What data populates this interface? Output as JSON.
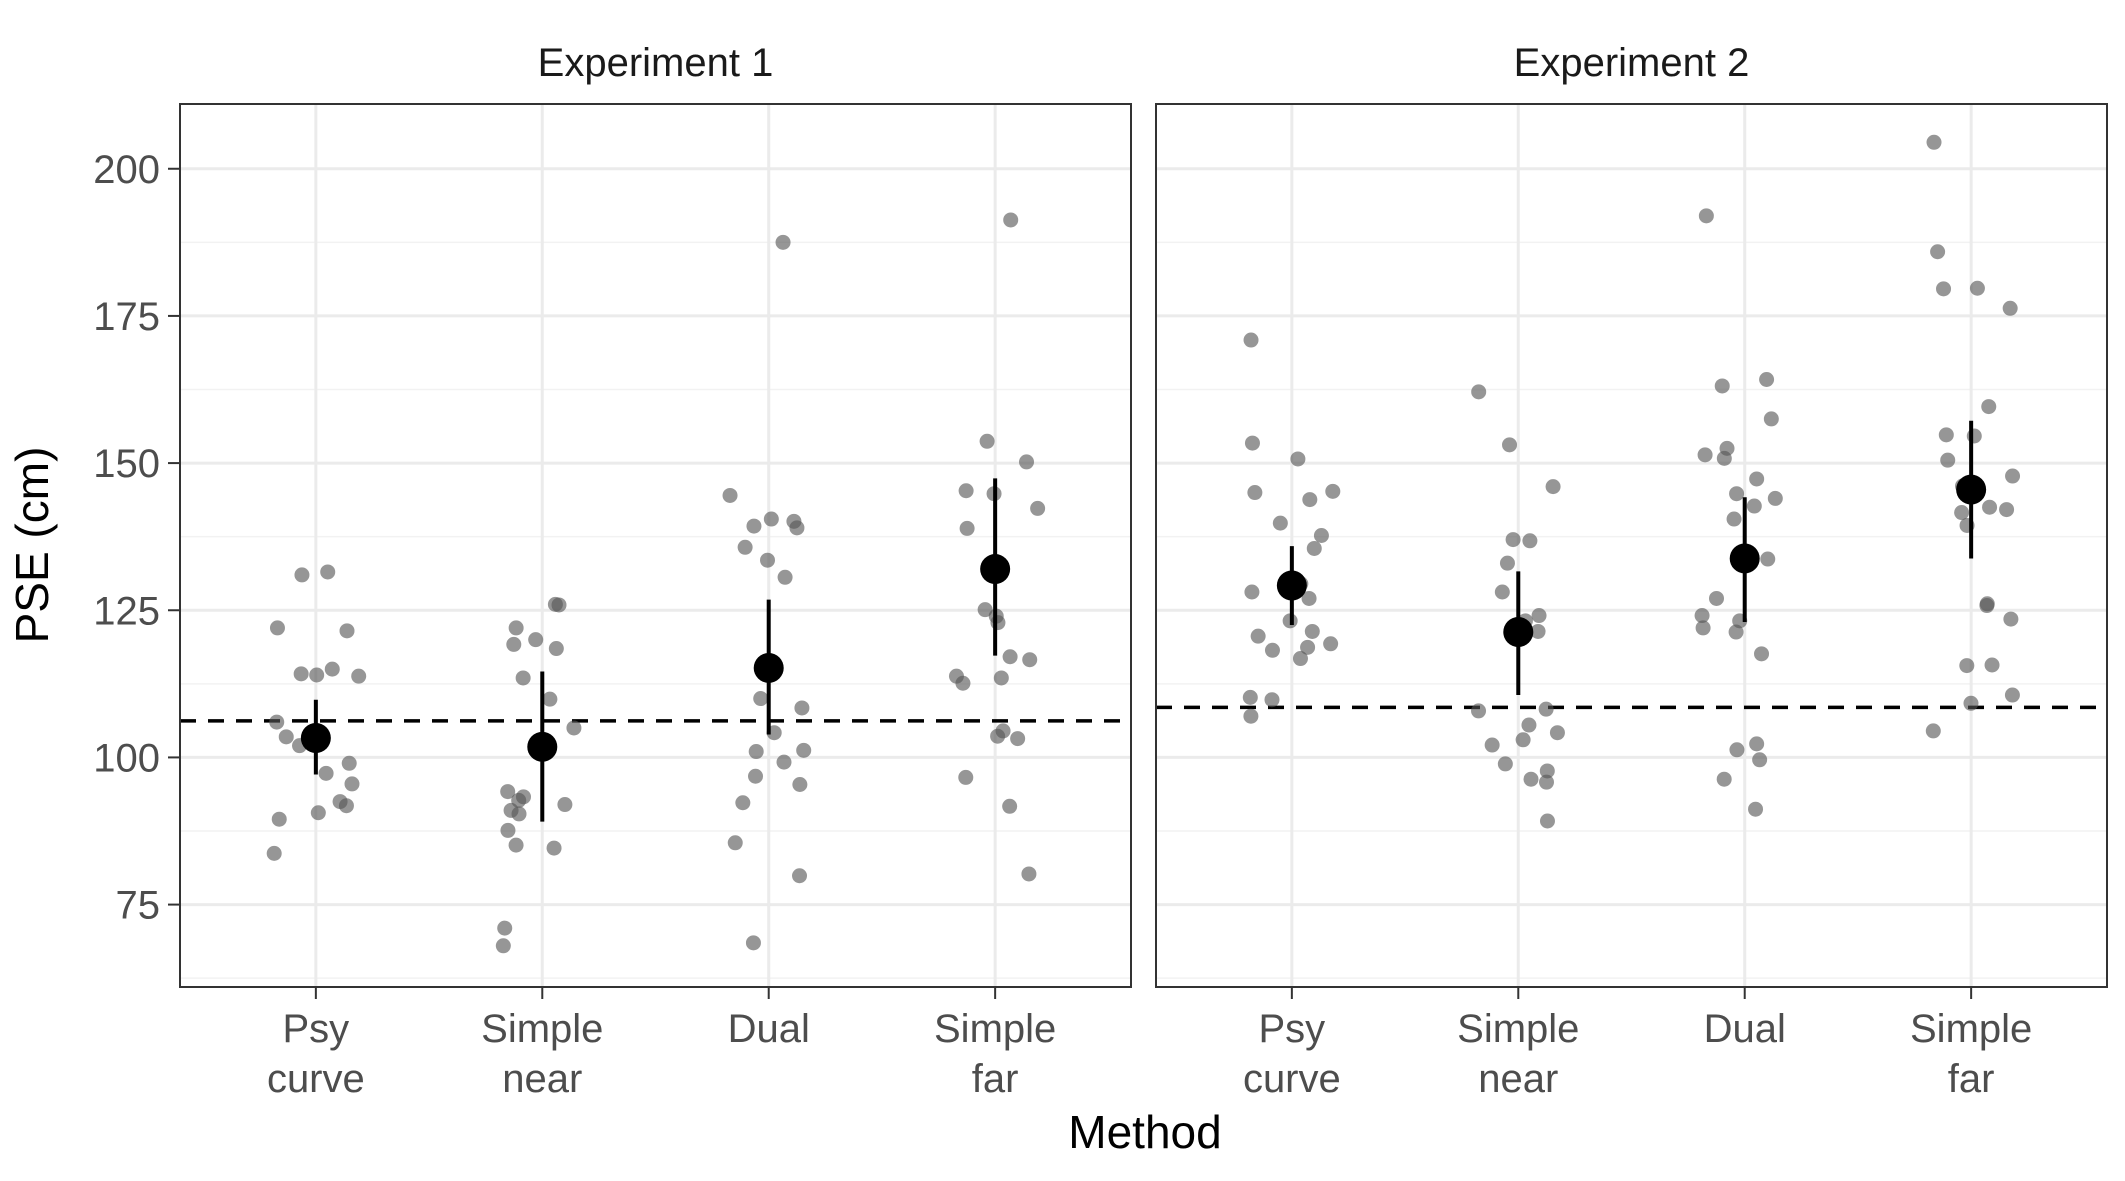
{
  "chart_data": {
    "type": "scatter",
    "xlabel": "Method",
    "ylabel": "PSE (cm)",
    "categories": [
      "Psy\ncurve",
      "Simple\nnear",
      "Dual",
      "Simple\nfar"
    ],
    "ylim": [
      61,
      211
    ],
    "yticks": [
      75,
      100,
      125,
      150,
      175,
      200
    ],
    "grid": true,
    "colors": {
      "point": "#555555",
      "mean": "#000000",
      "reference": "#000000"
    },
    "panels": [
      {
        "title": "Experiment 1",
        "reference_line": 106.2,
        "summary": [
          {
            "category": "Psy\ncurve",
            "mean": 103.3,
            "lower": 97.1,
            "upper": 109.8
          },
          {
            "category": "Simple\nnear",
            "mean": 101.8,
            "lower": 89.1,
            "upper": 114.6
          },
          {
            "category": "Dual",
            "mean": 115.2,
            "lower": 103.9,
            "upper": 126.8
          },
          {
            "category": "Simple\nfar",
            "mean": 132.0,
            "lower": 117.3,
            "upper": 147.4
          }
        ],
        "points": [
          [
            131.5,
            131.0,
            121.5,
            122.0,
            114.0,
            113.8,
            114.2,
            115.0,
            106.0,
            103.5,
            102.0,
            99.0,
            97.3,
            95.5,
            92.5,
            91.8,
            90.6,
            89.5,
            83.7
          ],
          [
            126.0,
            125.9,
            122.0,
            120.0,
            119.2,
            118.5,
            113.5,
            109.9,
            105.0,
            93.3,
            94.2,
            92.7,
            92.0,
            91.0,
            90.4,
            87.6,
            85.1,
            84.6,
            71.0,
            68.0
          ],
          [
            187.5,
            144.5,
            140.5,
            140.1,
            139.0,
            139.3,
            135.7,
            133.5,
            130.6,
            110.0,
            108.4,
            104.2,
            101.2,
            101.0,
            99.2,
            96.8,
            95.4,
            92.3,
            85.5,
            79.9,
            68.5
          ],
          [
            191.3,
            153.7,
            150.2,
            145.3,
            144.8,
            142.3,
            138.9,
            125.1,
            124.0,
            122.9,
            117.1,
            116.6,
            113.8,
            113.5,
            112.6,
            104.5,
            103.6,
            103.2,
            96.6,
            91.7,
            80.2
          ]
        ]
      },
      {
        "title": "Experiment 2",
        "reference_line": 108.5,
        "summary": [
          {
            "category": "Psy\ncurve",
            "mean": 129.2,
            "lower": 122.5,
            "upper": 135.9
          },
          {
            "category": "Simple\nnear",
            "mean": 121.3,
            "lower": 110.6,
            "upper": 131.6
          },
          {
            "category": "Dual",
            "mean": 133.8,
            "lower": 123.0,
            "upper": 144.2
          },
          {
            "category": "Simple\nfar",
            "mean": 145.5,
            "lower": 133.8,
            "upper": 157.2
          }
        ],
        "points": [
          [
            170.9,
            153.4,
            150.7,
            145.0,
            145.2,
            143.8,
            139.8,
            137.7,
            135.5,
            129.5,
            128.1,
            127.0,
            123.2,
            121.4,
            120.6,
            119.3,
            118.7,
            118.2,
            116.8,
            110.2,
            109.8,
            107.0
          ],
          [
            162.1,
            153.1,
            146.0,
            137.0,
            136.8,
            133.0,
            128.1,
            124.1,
            123.2,
            121.4,
            108.2,
            107.9,
            105.5,
            104.2,
            103.0,
            102.1,
            98.9,
            97.7,
            96.3,
            95.8,
            89.2
          ],
          [
            192.0,
            164.2,
            163.1,
            157.5,
            152.5,
            151.4,
            150.8,
            147.3,
            144.8,
            144.0,
            142.7,
            140.5,
            133.7,
            127.0,
            124.1,
            123.2,
            122.0,
            121.3,
            117.6,
            102.3,
            101.3,
            99.6,
            96.3,
            91.2
          ],
          [
            204.5,
            185.9,
            179.7,
            179.6,
            176.3,
            159.6,
            154.8,
            154.6,
            150.5,
            147.8,
            146.1,
            142.5,
            142.1,
            141.6,
            139.4,
            126.1,
            125.8,
            123.5,
            115.7,
            115.6,
            110.6,
            109.2,
            104.5
          ]
        ]
      }
    ]
  }
}
